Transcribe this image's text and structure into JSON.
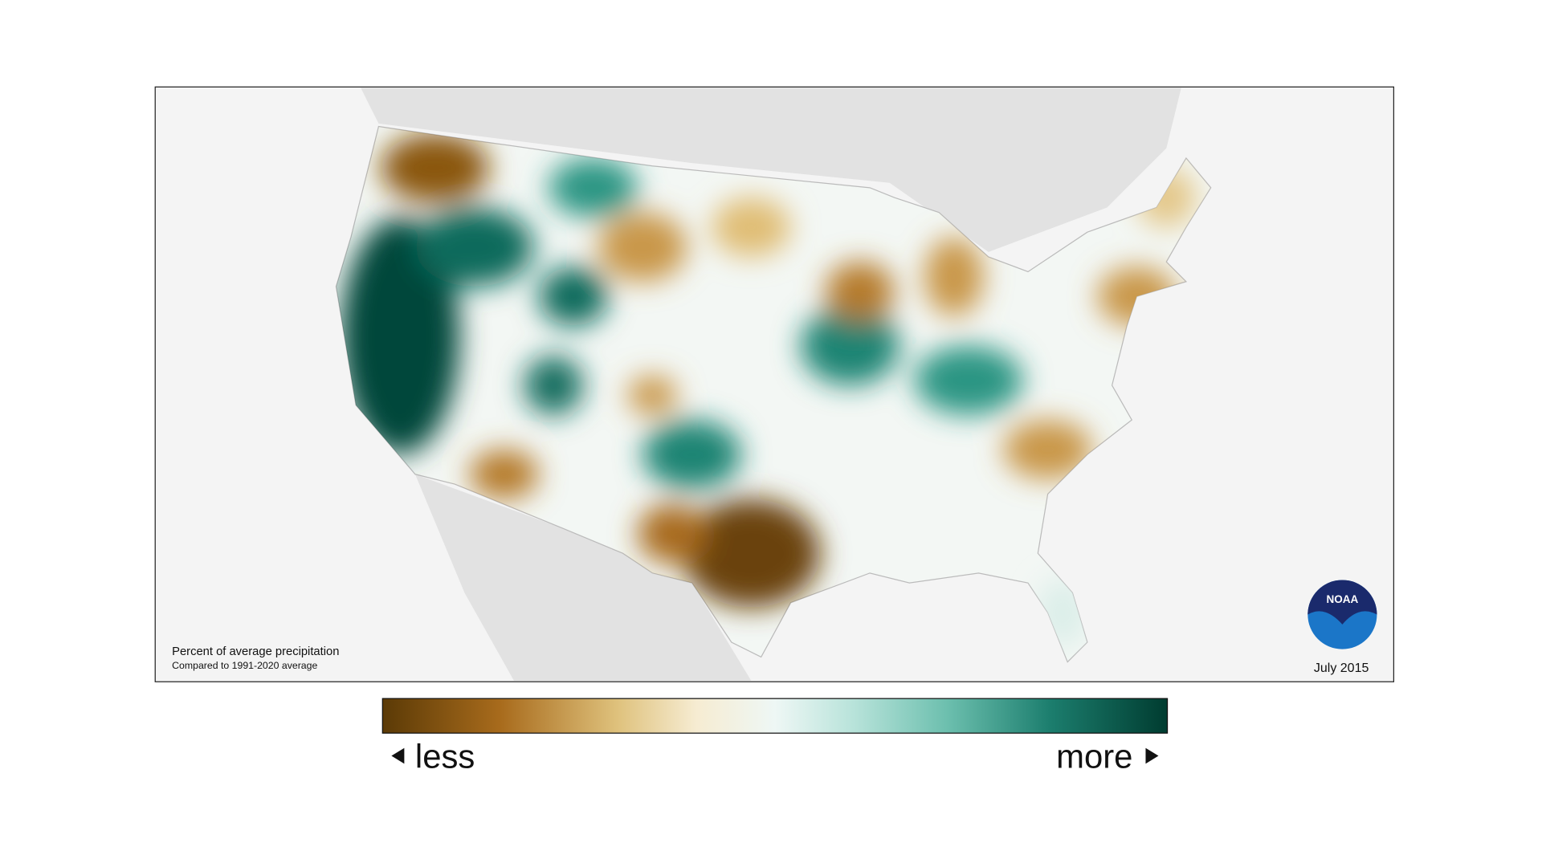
{
  "map": {
    "caption": {
      "title": "Percent of average precipitation",
      "subtitle": "Compared to 1991-2020 average"
    },
    "date": "July 2015",
    "logo": "NOAA",
    "legend": {
      "low": "less",
      "high": "more"
    }
  }
}
